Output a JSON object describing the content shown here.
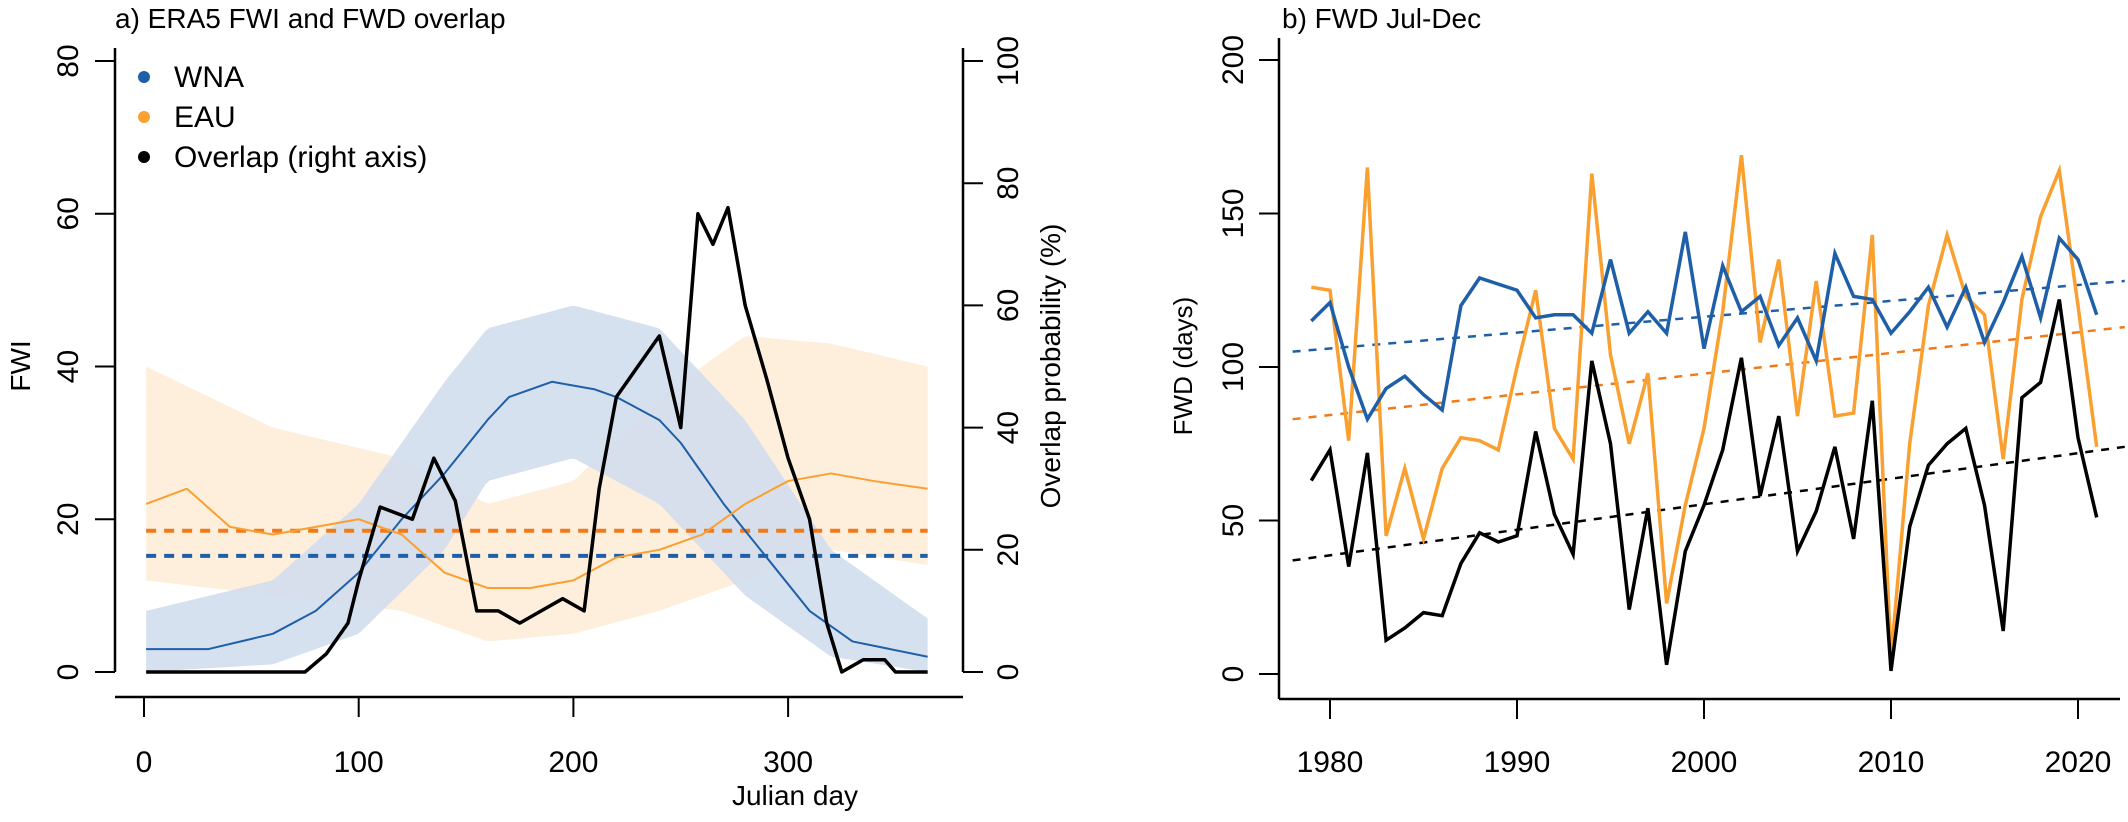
{
  "colors": {
    "wna": "#1f5fa8",
    "eau": "#f9a031",
    "eau_dashed": "#f07a1a",
    "overlap": "#000000",
    "wna_band": "#cfdced",
    "eau_band": "#fde9d2"
  },
  "chart_data": [
    {
      "type": "line",
      "title": "a) ERA5 FWI and FWD overlap",
      "xlabel": "Julian day",
      "ylabel": "FWI",
      "ylabel_right": "Overlap probability (%)",
      "xlim": [
        0,
        365
      ],
      "ylim": [
        0,
        80
      ],
      "ylim_right": [
        0,
        100
      ],
      "xticks": [
        0,
        100,
        200,
        300
      ],
      "yticks": [
        0,
        20,
        40,
        60,
        80
      ],
      "yticks_right": [
        0,
        20,
        40,
        60,
        80,
        100
      ],
      "legend": {
        "placement": "top-left",
        "entries": [
          "WNA",
          "EAU",
          "Overlap (right axis)"
        ]
      },
      "series": [
        {
          "name": "WNA",
          "axis": "left",
          "x": [
            1,
            30,
            60,
            80,
            100,
            120,
            140,
            160,
            170,
            190,
            210,
            220,
            240,
            250,
            270,
            290,
            310,
            330,
            365
          ],
          "y": [
            3,
            3,
            5,
            8,
            13,
            20,
            26,
            33,
            36,
            38,
            37,
            36,
            33,
            30,
            22,
            15,
            8,
            4,
            2
          ],
          "band_x": [
            1,
            60,
            100,
            140,
            160,
            200,
            240,
            280,
            320,
            365
          ],
          "band_low": [
            0,
            1,
            5,
            16,
            25,
            28,
            22,
            10,
            2,
            0
          ],
          "band_high": [
            8,
            12,
            22,
            38,
            45,
            48,
            45,
            33,
            16,
            7
          ]
        },
        {
          "name": "EAU",
          "axis": "left",
          "x": [
            1,
            20,
            40,
            60,
            80,
            100,
            120,
            140,
            160,
            180,
            200,
            220,
            240,
            260,
            280,
            300,
            320,
            340,
            365
          ],
          "y": [
            22,
            24,
            19,
            18,
            19,
            20,
            18,
            13,
            11,
            11,
            12,
            15,
            16,
            18,
            22,
            25,
            26,
            25,
            24
          ],
          "band_x": [
            1,
            60,
            120,
            160,
            200,
            240,
            280,
            320,
            365
          ],
          "band_low": [
            12,
            10,
            8,
            4,
            5,
            8,
            12,
            16,
            14
          ],
          "band_high": [
            40,
            32,
            28,
            22,
            25,
            36,
            44,
            43,
            40
          ]
        },
        {
          "name": "Overlap (right axis)",
          "axis": "right",
          "x": [
            1,
            75,
            85,
            95,
            100,
            110,
            125,
            135,
            145,
            155,
            165,
            175,
            185,
            195,
            205,
            212,
            220,
            230,
            240,
            250,
            258,
            265,
            272,
            280,
            290,
            300,
            310,
            318,
            325,
            335,
            345,
            350,
            365
          ],
          "y": [
            0,
            0,
            3,
            8,
            15,
            27,
            25,
            35,
            28,
            10,
            10,
            8,
            10,
            12,
            10,
            30,
            45,
            50,
            55,
            40,
            75,
            70,
            76,
            60,
            48,
            35,
            25,
            8,
            0,
            2,
            2,
            0,
            0
          ]
        }
      ],
      "hlines": [
        {
          "region": "EAU",
          "y": 18.5,
          "style": "dashed"
        },
        {
          "region": "WNA",
          "y": 15.2,
          "style": "dashed"
        }
      ]
    },
    {
      "type": "line",
      "title": "b) FWD Jul-Dec",
      "xlabel": "",
      "ylabel": "FWD (days)",
      "xlim": [
        1977.5,
        2022.5
      ],
      "ylim": [
        0,
        200
      ],
      "xticks": [
        1980,
        1990,
        2000,
        2010,
        2020
      ],
      "yticks": [
        0,
        50,
        100,
        150,
        200
      ],
      "x": [
        1979,
        1980,
        1981,
        1982,
        1983,
        1984,
        1985,
        1986,
        1987,
        1988,
        1989,
        1990,
        1991,
        1992,
        1993,
        1994,
        1995,
        1996,
        1997,
        1998,
        1999,
        2000,
        2001,
        2002,
        2003,
        2004,
        2005,
        2006,
        2007,
        2008,
        2009,
        2010,
        2011,
        2012,
        2013,
        2014,
        2015,
        2016,
        2017,
        2018,
        2019,
        2020,
        2021
      ],
      "series": [
        {
          "name": "WNA",
          "values": [
            115,
            121,
            100,
            83,
            93,
            97,
            91,
            86,
            120,
            129,
            127,
            125,
            116,
            117,
            117,
            111,
            135,
            111,
            118,
            111,
            144,
            106,
            133,
            118,
            123,
            107,
            116,
            102,
            137,
            123,
            122,
            111,
            118,
            126,
            113,
            126,
            108,
            121,
            136,
            116,
            142,
            135,
            117
          ],
          "trend": {
            "x": [
              1978,
              2022.5
            ],
            "y": [
              105,
              128
            ]
          }
        },
        {
          "name": "EAU",
          "values": [
            126,
            125,
            76,
            165,
            45,
            67,
            44,
            67,
            77,
            76,
            73,
            100,
            125,
            80,
            70,
            163,
            104,
            75,
            98,
            23,
            55,
            80,
            118,
            169,
            108,
            135,
            84,
            128,
            84,
            85,
            143,
            5,
            75,
            120,
            143,
            123,
            117,
            70,
            122,
            149,
            164,
            120,
            74
          ],
          "trend": {
            "x": [
              1978,
              2022.5
            ],
            "y": [
              83,
              113
            ]
          }
        },
        {
          "name": "Overlap",
          "values": [
            63,
            73,
            35,
            72,
            11,
            15,
            20,
            19,
            36,
            46,
            43,
            45,
            79,
            52,
            39,
            102,
            75,
            21,
            54,
            3,
            40,
            55,
            73,
            103,
            58,
            84,
            40,
            53,
            74,
            44,
            89,
            1,
            48,
            68,
            75,
            80,
            55,
            14,
            90,
            95,
            122,
            77,
            51
          ],
          "trend": {
            "x": [
              1978,
              2022.5
            ],
            "y": [
              37,
              74
            ]
          }
        }
      ]
    }
  ]
}
